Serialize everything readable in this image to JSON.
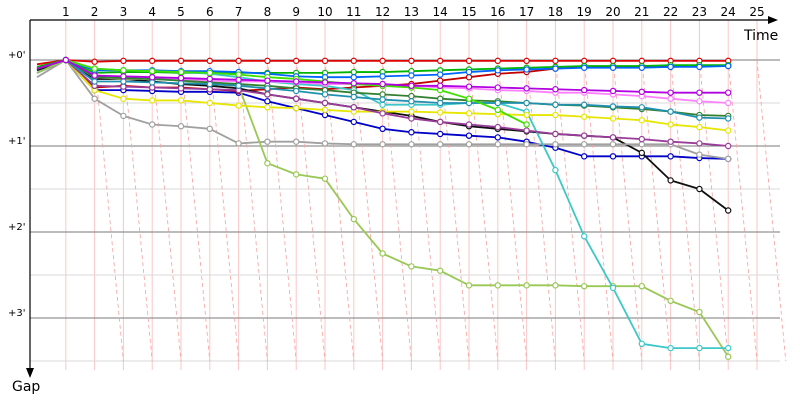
{
  "chart_data": {
    "type": "line",
    "title": "",
    "xlabel": "Time",
    "ylabel": "Gap",
    "x": [
      1,
      2,
      3,
      4,
      5,
      6,
      7,
      8,
      9,
      10,
      11,
      12,
      13,
      14,
      15,
      16,
      17,
      18,
      19,
      20,
      21,
      22,
      23,
      24,
      25
    ],
    "x_tick_labels": [
      "1",
      "2",
      "3",
      "4",
      "5",
      "6",
      "7",
      "8",
      "9",
      "10",
      "11",
      "12",
      "13",
      "14",
      "15",
      "16",
      "17",
      "18",
      "19",
      "20",
      "21",
      "22",
      "23",
      "24",
      "25"
    ],
    "y_tick_labels": [
      {
        "value": 0,
        "label": "+0'"
      },
      {
        "value": 1,
        "label": "+1'"
      },
      {
        "value": 2,
        "label": "+2'"
      },
      {
        "value": 3,
        "label": "+3'"
      }
    ],
    "y_unit": "minutes",
    "y_inverted": true,
    "grid": true,
    "legend": "none",
    "series": [
      {
        "color": "#e00000",
        "x": [
          0.0,
          1,
          2,
          3,
          4,
          5,
          6,
          7,
          8,
          9,
          10,
          11,
          12,
          13,
          14,
          15,
          16,
          17,
          18,
          19,
          20,
          21,
          22,
          23,
          24
        ],
        "values": [
          0.05,
          0,
          0.02,
          0.01,
          0.01,
          0.01,
          0.01,
          0.01,
          0.01,
          0.01,
          0.01,
          0.01,
          0.01,
          0.01,
          0.01,
          0.01,
          0.01,
          0.01,
          0.01,
          0.01,
          0.01,
          0.01,
          0.01,
          0.01,
          0.01
        ]
      },
      {
        "color": "#0000c8",
        "x": [
          0.0,
          1,
          2,
          3,
          4,
          5,
          6,
          7,
          8,
          9,
          10,
          11,
          12,
          13,
          14,
          15,
          16,
          17,
          18,
          19,
          20,
          21,
          22,
          23,
          24
        ],
        "values": [
          0.15,
          0,
          0.35,
          0.35,
          0.36,
          0.37,
          0.37,
          0.38,
          0.48,
          0.56,
          0.64,
          0.72,
          0.8,
          0.84,
          0.86,
          0.88,
          0.9,
          0.95,
          1.02,
          1.12,
          1.12,
          1.12,
          1.12,
          1.14,
          1.15
        ]
      },
      {
        "color": "#c00000",
        "x": [
          0.0,
          1,
          2,
          3,
          4,
          5,
          6,
          7,
          8,
          9,
          10,
          11,
          12,
          13,
          14,
          15,
          16,
          17,
          18,
          19,
          20,
          21,
          22,
          23,
          24
        ],
        "values": [
          0.1,
          0,
          0.32,
          0.3,
          0.32,
          0.32,
          0.34,
          0.36,
          0.34,
          0.32,
          0.34,
          0.32,
          0.3,
          0.28,
          0.24,
          0.2,
          0.16,
          0.14,
          0.1,
          0.08,
          0.08,
          0.08,
          0.08,
          0.07,
          0.07
        ]
      },
      {
        "color": "#00b400",
        "x": [
          0.0,
          1,
          2,
          3,
          4,
          5,
          6,
          7,
          8,
          9,
          10,
          11,
          12,
          13,
          14,
          15,
          16,
          17,
          18,
          19,
          20,
          21,
          22,
          23,
          24
        ],
        "values": [
          0.08,
          0,
          0.15,
          0.14,
          0.14,
          0.15,
          0.15,
          0.15,
          0.15,
          0.15,
          0.15,
          0.14,
          0.14,
          0.13,
          0.12,
          0.11,
          0.1,
          0.09,
          0.08,
          0.07,
          0.07,
          0.07,
          0.06,
          0.06,
          0.06
        ]
      },
      {
        "color": "#0064ff",
        "x": [
          0.0,
          1,
          2,
          3,
          4,
          5,
          6,
          7,
          8,
          9,
          10,
          11,
          12,
          13,
          14,
          15,
          16,
          17,
          18,
          19,
          20,
          21,
          22,
          23,
          24
        ],
        "values": [
          0.12,
          0,
          0.12,
          0.12,
          0.12,
          0.13,
          0.13,
          0.14,
          0.16,
          0.19,
          0.2,
          0.2,
          0.19,
          0.18,
          0.17,
          0.14,
          0.12,
          0.11,
          0.1,
          0.09,
          0.09,
          0.09,
          0.08,
          0.08,
          0.07
        ]
      },
      {
        "color": "#101010",
        "x": [
          0.0,
          1,
          2,
          3,
          4,
          5,
          6,
          7,
          8,
          9,
          10,
          11,
          12,
          13,
          14,
          15,
          16,
          17,
          18,
          19,
          20,
          21,
          22,
          23,
          24
        ],
        "values": [
          0.12,
          0,
          0.22,
          0.22,
          0.25,
          0.28,
          0.3,
          0.33,
          0.4,
          0.45,
          0.5,
          0.55,
          0.6,
          0.65,
          0.72,
          0.77,
          0.8,
          0.83,
          0.86,
          0.88,
          0.9,
          1.08,
          1.4,
          1.5,
          1.75
        ]
      },
      {
        "color": "#a0a0a0",
        "x": [
          0.0,
          1,
          2,
          3,
          4,
          5,
          6,
          7,
          8,
          9,
          10,
          11,
          12,
          13,
          14,
          15,
          16,
          17,
          18,
          19,
          20,
          21,
          22,
          23,
          24
        ],
        "values": [
          0.2,
          0,
          0.45,
          0.65,
          0.75,
          0.77,
          0.8,
          0.97,
          0.95,
          0.95,
          0.97,
          0.98,
          0.98,
          0.98,
          0.98,
          0.98,
          0.98,
          0.98,
          0.98,
          0.98,
          0.98,
          0.98,
          0.98,
          1.1,
          1.15
        ]
      },
      {
        "color": "#99c855",
        "x": [
          0.0,
          1,
          2,
          3,
          4,
          5,
          6,
          7,
          8,
          9,
          10,
          11,
          12,
          13,
          14,
          15,
          16,
          17,
          18,
          19,
          20,
          21,
          22,
          23,
          24
        ],
        "values": [
          0.15,
          0,
          0.2,
          0.22,
          0.22,
          0.24,
          0.28,
          0.3,
          1.2,
          1.33,
          1.38,
          1.85,
          2.25,
          2.4,
          2.45,
          2.62,
          2.62,
          2.62,
          2.62,
          2.63,
          2.63,
          2.63,
          2.8,
          2.93,
          3.45
        ]
      },
      {
        "color": "#3cc8c8",
        "x": [
          0.0,
          1,
          2,
          3,
          4,
          5,
          6,
          7,
          8,
          9,
          10,
          11,
          12,
          13,
          14,
          15,
          16,
          17,
          18,
          19,
          20,
          21,
          22,
          23,
          24
        ],
        "values": [
          0.1,
          0,
          0.1,
          0.12,
          0.13,
          0.14,
          0.16,
          0.2,
          0.25,
          0.28,
          0.3,
          0.35,
          0.52,
          0.52,
          0.52,
          0.5,
          0.5,
          0.6,
          1.28,
          2.05,
          2.65,
          3.3,
          3.35,
          3.35,
          3.35
        ]
      },
      {
        "color": "#e6e600",
        "x": [
          0.0,
          1,
          2,
          3,
          4,
          5,
          6,
          7,
          8,
          9,
          10,
          11,
          12,
          13,
          14,
          15,
          16,
          17,
          18,
          19,
          20,
          21,
          22,
          23,
          24
        ],
        "values": [
          0.1,
          0,
          0.35,
          0.45,
          0.47,
          0.47,
          0.5,
          0.53,
          0.55,
          0.56,
          0.58,
          0.6,
          0.6,
          0.6,
          0.61,
          0.62,
          0.63,
          0.64,
          0.64,
          0.66,
          0.68,
          0.7,
          0.75,
          0.78,
          0.82
        ]
      },
      {
        "color": "#ff80ff",
        "x": [
          0.0,
          1,
          2,
          3,
          4,
          5,
          6,
          7,
          8,
          9,
          10,
          11,
          12,
          13,
          14,
          15,
          16,
          17,
          18,
          19,
          20,
          21,
          22,
          23,
          24
        ],
        "values": [
          0.1,
          0,
          0.2,
          0.21,
          0.22,
          0.23,
          0.24,
          0.25,
          0.25,
          0.26,
          0.28,
          0.28,
          0.3,
          0.3,
          0.32,
          0.33,
          0.35,
          0.36,
          0.38,
          0.38,
          0.4,
          0.42,
          0.45,
          0.48,
          0.5
        ]
      },
      {
        "color": "#9a3c9a",
        "x": [
          0.0,
          1,
          2,
          3,
          4,
          5,
          6,
          7,
          8,
          9,
          10,
          11,
          12,
          13,
          14,
          15,
          16,
          17,
          18,
          19,
          20,
          21,
          22,
          23,
          24
        ],
        "values": [
          0.1,
          0,
          0.3,
          0.31,
          0.32,
          0.33,
          0.34,
          0.35,
          0.4,
          0.45,
          0.5,
          0.55,
          0.62,
          0.68,
          0.72,
          0.75,
          0.78,
          0.82,
          0.86,
          0.88,
          0.9,
          0.92,
          0.95,
          0.97,
          1.0
        ]
      },
      {
        "color": "#338033",
        "x": [
          0.0,
          1,
          2,
          3,
          4,
          5,
          6,
          7,
          8,
          9,
          10,
          11,
          12,
          13,
          14,
          15,
          16,
          17,
          18,
          19,
          20,
          21,
          22,
          23,
          24
        ],
        "values": [
          0.1,
          0,
          0.2,
          0.21,
          0.22,
          0.24,
          0.26,
          0.28,
          0.3,
          0.33,
          0.35,
          0.38,
          0.4,
          0.42,
          0.45,
          0.47,
          0.48,
          0.5,
          0.52,
          0.53,
          0.55,
          0.57,
          0.6,
          0.64,
          0.65
        ]
      },
      {
        "color": "#2090b0",
        "x": [
          0.0,
          1,
          2,
          3,
          4,
          5,
          6,
          7,
          8,
          9,
          10,
          11,
          12,
          13,
          14,
          15,
          16,
          17,
          18,
          19,
          20,
          21,
          22,
          23,
          24
        ],
        "values": [
          0.1,
          0,
          0.25,
          0.25,
          0.26,
          0.27,
          0.28,
          0.3,
          0.33,
          0.36,
          0.4,
          0.43,
          0.46,
          0.48,
          0.5,
          0.5,
          0.5,
          0.5,
          0.52,
          0.52,
          0.54,
          0.55,
          0.6,
          0.67,
          0.68
        ]
      },
      {
        "color": "#40e000",
        "x": [
          0.0,
          1,
          2,
          3,
          4,
          5,
          6,
          7,
          8,
          9,
          10,
          11,
          12,
          13,
          14,
          15,
          16,
          17,
          18,
          19,
          20,
          21,
          22,
          23,
          24
        ],
        "values": [
          0.1,
          0,
          0.1,
          0.12,
          0.13,
          0.14,
          0.15,
          0.17,
          0.2,
          0.22,
          0.25,
          0.28,
          0.3,
          0.32,
          0.35,
          0.45,
          0.58,
          0.75,
          null,
          null,
          null,
          null,
          null,
          null,
          null
        ]
      },
      {
        "color": "#b000e0",
        "x": [
          0.0,
          1,
          2,
          3,
          4,
          5,
          6,
          7,
          8,
          9,
          10,
          11,
          12,
          13,
          14,
          15,
          16,
          17,
          18,
          19,
          20,
          21,
          22,
          23,
          24
        ],
        "values": [
          0.1,
          0,
          0.18,
          0.19,
          0.2,
          0.21,
          0.22,
          0.23,
          0.24,
          0.25,
          0.26,
          0.27,
          0.28,
          0.3,
          0.3,
          0.31,
          0.32,
          0.33,
          0.34,
          0.35,
          0.36,
          0.37,
          0.38,
          0.38,
          0.38
        ]
      }
    ]
  }
}
